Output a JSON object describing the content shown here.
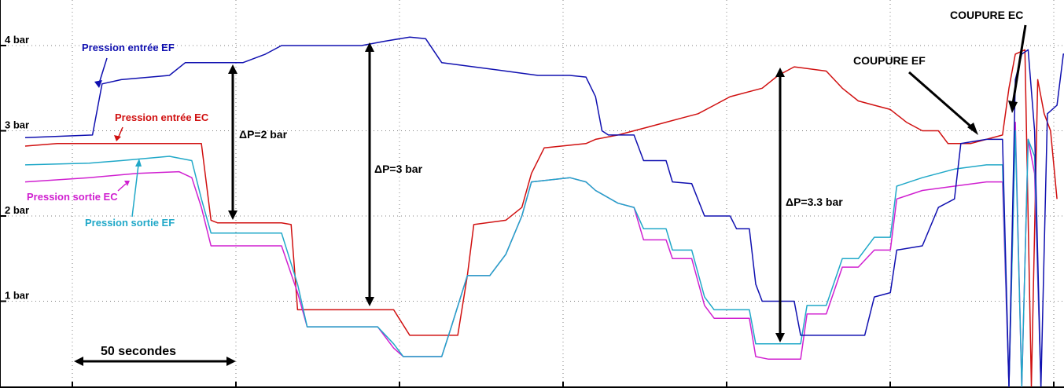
{
  "chart_data": {
    "type": "line",
    "x_unit": "s",
    "xlim": [
      0,
      321
    ],
    "ylim": [
      0,
      4.35
    ],
    "ytick_labels": [
      {
        "value": 1,
        "label": "1 bar"
      },
      {
        "value": 2,
        "label": "2 bar"
      },
      {
        "value": 3,
        "label": "3 bar"
      },
      {
        "value": 4,
        "label": "4 bar"
      }
    ],
    "grid": true,
    "colors": {
      "Pression entrée EF": "#1010b0",
      "Pression entrée EC": "#d01010",
      "Pression sortie EF": "#20a8c8",
      "Pression sortie EC": "#d020d0",
      "axis": "#000000",
      "grid": "#808080"
    },
    "series": [
      {
        "name": "Pression entrée EF",
        "points": [
          [
            0,
            2.92
          ],
          [
            21,
            2.95
          ],
          [
            24,
            3.55
          ],
          [
            30,
            3.6
          ],
          [
            45,
            3.65
          ],
          [
            50,
            3.8
          ],
          [
            60,
            3.8
          ],
          [
            68,
            3.8
          ],
          [
            75,
            3.9
          ],
          [
            80,
            4.0
          ],
          [
            95,
            4.0
          ],
          [
            105,
            4.0
          ],
          [
            112,
            4.05
          ],
          [
            120,
            4.1
          ],
          [
            125,
            4.08
          ],
          [
            130,
            3.8
          ],
          [
            140,
            3.75
          ],
          [
            150,
            3.7
          ],
          [
            160,
            3.65
          ],
          [
            170,
            3.65
          ],
          [
            175,
            3.63
          ],
          [
            178,
            3.4
          ],
          [
            180,
            3.0
          ],
          [
            182,
            2.95
          ],
          [
            190,
            2.95
          ],
          [
            193,
            2.65
          ],
          [
            200,
            2.65
          ],
          [
            202,
            2.4
          ],
          [
            208,
            2.38
          ],
          [
            212,
            2.0
          ],
          [
            220,
            2.0
          ],
          [
            222,
            1.85
          ],
          [
            226,
            1.85
          ],
          [
            228,
            1.2
          ],
          [
            230,
            1.0
          ],
          [
            240,
            1.0
          ],
          [
            242,
            0.6
          ],
          [
            255,
            0.6
          ],
          [
            262,
            0.6
          ],
          [
            265,
            1.05
          ],
          [
            270,
            1.1
          ],
          [
            272,
            1.6
          ],
          [
            280,
            1.65
          ],
          [
            285,
            2.1
          ],
          [
            290,
            2.2
          ],
          [
            292,
            2.85
          ],
          [
            300,
            2.9
          ],
          [
            305,
            2.9
          ],
          [
            307,
            0.0
          ],
          [
            309,
            3.6
          ],
          [
            311,
            3.9
          ],
          [
            313,
            3.95
          ],
          [
            315,
            3.0
          ],
          [
            317,
            0.0
          ],
          [
            319,
            3.2
          ],
          [
            322,
            3.3
          ],
          [
            324,
            3.9
          ],
          [
            332,
            3.9
          ]
        ]
      },
      {
        "name": "Pression entrée EC",
        "points": [
          [
            0,
            2.82
          ],
          [
            10,
            2.85
          ],
          [
            25,
            2.85
          ],
          [
            40,
            2.85
          ],
          [
            50,
            2.85
          ],
          [
            55,
            2.85
          ],
          [
            58,
            1.95
          ],
          [
            60,
            1.92
          ],
          [
            70,
            1.92
          ],
          [
            80,
            1.92
          ],
          [
            83,
            1.9
          ],
          [
            85,
            0.9
          ],
          [
            95,
            0.9
          ],
          [
            110,
            0.9
          ],
          [
            115,
            0.9
          ],
          [
            120,
            0.6
          ],
          [
            130,
            0.6
          ],
          [
            135,
            0.6
          ],
          [
            138,
            1.3
          ],
          [
            140,
            1.9
          ],
          [
            150,
            1.95
          ],
          [
            155,
            2.1
          ],
          [
            158,
            2.5
          ],
          [
            162,
            2.8
          ],
          [
            175,
            2.85
          ],
          [
            178,
            2.9
          ],
          [
            185,
            2.95
          ],
          [
            195,
            3.05
          ],
          [
            200,
            3.1
          ],
          [
            205,
            3.15
          ],
          [
            210,
            3.2
          ],
          [
            215,
            3.3
          ],
          [
            220,
            3.4
          ],
          [
            230,
            3.5
          ],
          [
            235,
            3.65
          ],
          [
            240,
            3.75
          ],
          [
            250,
            3.7
          ],
          [
            255,
            3.5
          ],
          [
            260,
            3.35
          ],
          [
            265,
            3.3
          ],
          [
            270,
            3.25
          ],
          [
            275,
            3.1
          ],
          [
            280,
            3.0
          ],
          [
            285,
            3.0
          ],
          [
            288,
            2.85
          ],
          [
            295,
            2.85
          ],
          [
            300,
            2.9
          ],
          [
            305,
            2.95
          ],
          [
            307,
            3.5
          ],
          [
            309,
            3.9
          ],
          [
            312,
            3.95
          ],
          [
            314,
            0.0
          ],
          [
            316,
            3.6
          ],
          [
            318,
            3.2
          ],
          [
            320,
            3.0
          ],
          [
            322,
            2.2
          ]
        ]
      },
      {
        "name": "Pression sortie EF",
        "points": [
          [
            0,
            2.6
          ],
          [
            20,
            2.62
          ],
          [
            30,
            2.65
          ],
          [
            45,
            2.7
          ],
          [
            52,
            2.65
          ],
          [
            55,
            2.2
          ],
          [
            58,
            1.8
          ],
          [
            65,
            1.8
          ],
          [
            80,
            1.8
          ],
          [
            85,
            1.2
          ],
          [
            88,
            0.7
          ],
          [
            100,
            0.7
          ],
          [
            110,
            0.7
          ],
          [
            115,
            0.5
          ],
          [
            118,
            0.35
          ],
          [
            130,
            0.35
          ],
          [
            133,
            0.7
          ],
          [
            138,
            1.3
          ],
          [
            145,
            1.3
          ],
          [
            150,
            1.55
          ],
          [
            155,
            2.0
          ],
          [
            158,
            2.4
          ],
          [
            170,
            2.45
          ],
          [
            175,
            2.4
          ],
          [
            178,
            2.3
          ],
          [
            185,
            2.15
          ],
          [
            190,
            2.1
          ],
          [
            193,
            1.85
          ],
          [
            200,
            1.85
          ],
          [
            202,
            1.6
          ],
          [
            208,
            1.6
          ],
          [
            212,
            1.05
          ],
          [
            215,
            0.9
          ],
          [
            226,
            0.9
          ],
          [
            228,
            0.5
          ],
          [
            232,
            0.5
          ],
          [
            242,
            0.5
          ],
          [
            244,
            0.95
          ],
          [
            250,
            0.95
          ],
          [
            255,
            1.5
          ],
          [
            260,
            1.5
          ],
          [
            265,
            1.75
          ],
          [
            270,
            1.75
          ],
          [
            272,
            2.35
          ],
          [
            280,
            2.45
          ],
          [
            290,
            2.55
          ],
          [
            300,
            2.6
          ],
          [
            305,
            2.6
          ],
          [
            307,
            0.0
          ],
          [
            309,
            3.0
          ],
          [
            311,
            0.0
          ],
          [
            313,
            2.9
          ],
          [
            315,
            2.7
          ],
          [
            317,
            0.0
          ]
        ]
      },
      {
        "name": "Pression sortie EC",
        "points": [
          [
            0,
            2.4
          ],
          [
            20,
            2.45
          ],
          [
            35,
            2.5
          ],
          [
            48,
            2.52
          ],
          [
            52,
            2.45
          ],
          [
            55,
            2.1
          ],
          [
            58,
            1.65
          ],
          [
            65,
            1.65
          ],
          [
            80,
            1.65
          ],
          [
            85,
            1.1
          ],
          [
            88,
            0.7
          ],
          [
            100,
            0.7
          ],
          [
            110,
            0.7
          ],
          [
            115,
            0.45
          ],
          [
            118,
            0.35
          ],
          [
            130,
            0.35
          ],
          [
            133,
            0.7
          ],
          [
            138,
            1.3
          ],
          [
            145,
            1.3
          ],
          [
            150,
            1.55
          ],
          [
            155,
            2.0
          ],
          [
            158,
            2.4
          ],
          [
            170,
            2.45
          ],
          [
            175,
            2.4
          ],
          [
            178,
            2.3
          ],
          [
            185,
            2.15
          ],
          [
            190,
            2.1
          ],
          [
            193,
            1.72
          ],
          [
            200,
            1.72
          ],
          [
            202,
            1.5
          ],
          [
            208,
            1.5
          ],
          [
            212,
            0.95
          ],
          [
            215,
            0.8
          ],
          [
            226,
            0.8
          ],
          [
            228,
            0.35
          ],
          [
            232,
            0.32
          ],
          [
            242,
            0.32
          ],
          [
            244,
            0.85
          ],
          [
            250,
            0.85
          ],
          [
            255,
            1.4
          ],
          [
            260,
            1.4
          ],
          [
            265,
            1.6
          ],
          [
            270,
            1.6
          ],
          [
            272,
            2.2
          ],
          [
            280,
            2.3
          ],
          [
            290,
            2.35
          ],
          [
            300,
            2.4
          ],
          [
            305,
            2.4
          ],
          [
            307,
            0.0
          ],
          [
            309,
            3.1
          ],
          [
            311,
            0.0
          ],
          [
            313,
            2.9
          ],
          [
            315,
            2.5
          ],
          [
            317,
            0.0
          ]
        ]
      }
    ],
    "series_labels": [
      "Pression entrée EF",
      "Pression entrée EC",
      "Pression sortie EC",
      "Pression sortie EF"
    ],
    "annotations": {
      "dp1": "ΔP=2 bar",
      "dp2": "ΔP=3 bar",
      "dp3": "ΔP=3.3 bar",
      "cut_ef": "COUPURE EF",
      "cut_ec": "COUPURE EC",
      "scale": "50 secondes"
    },
    "scale_bar_seconds": 50
  }
}
